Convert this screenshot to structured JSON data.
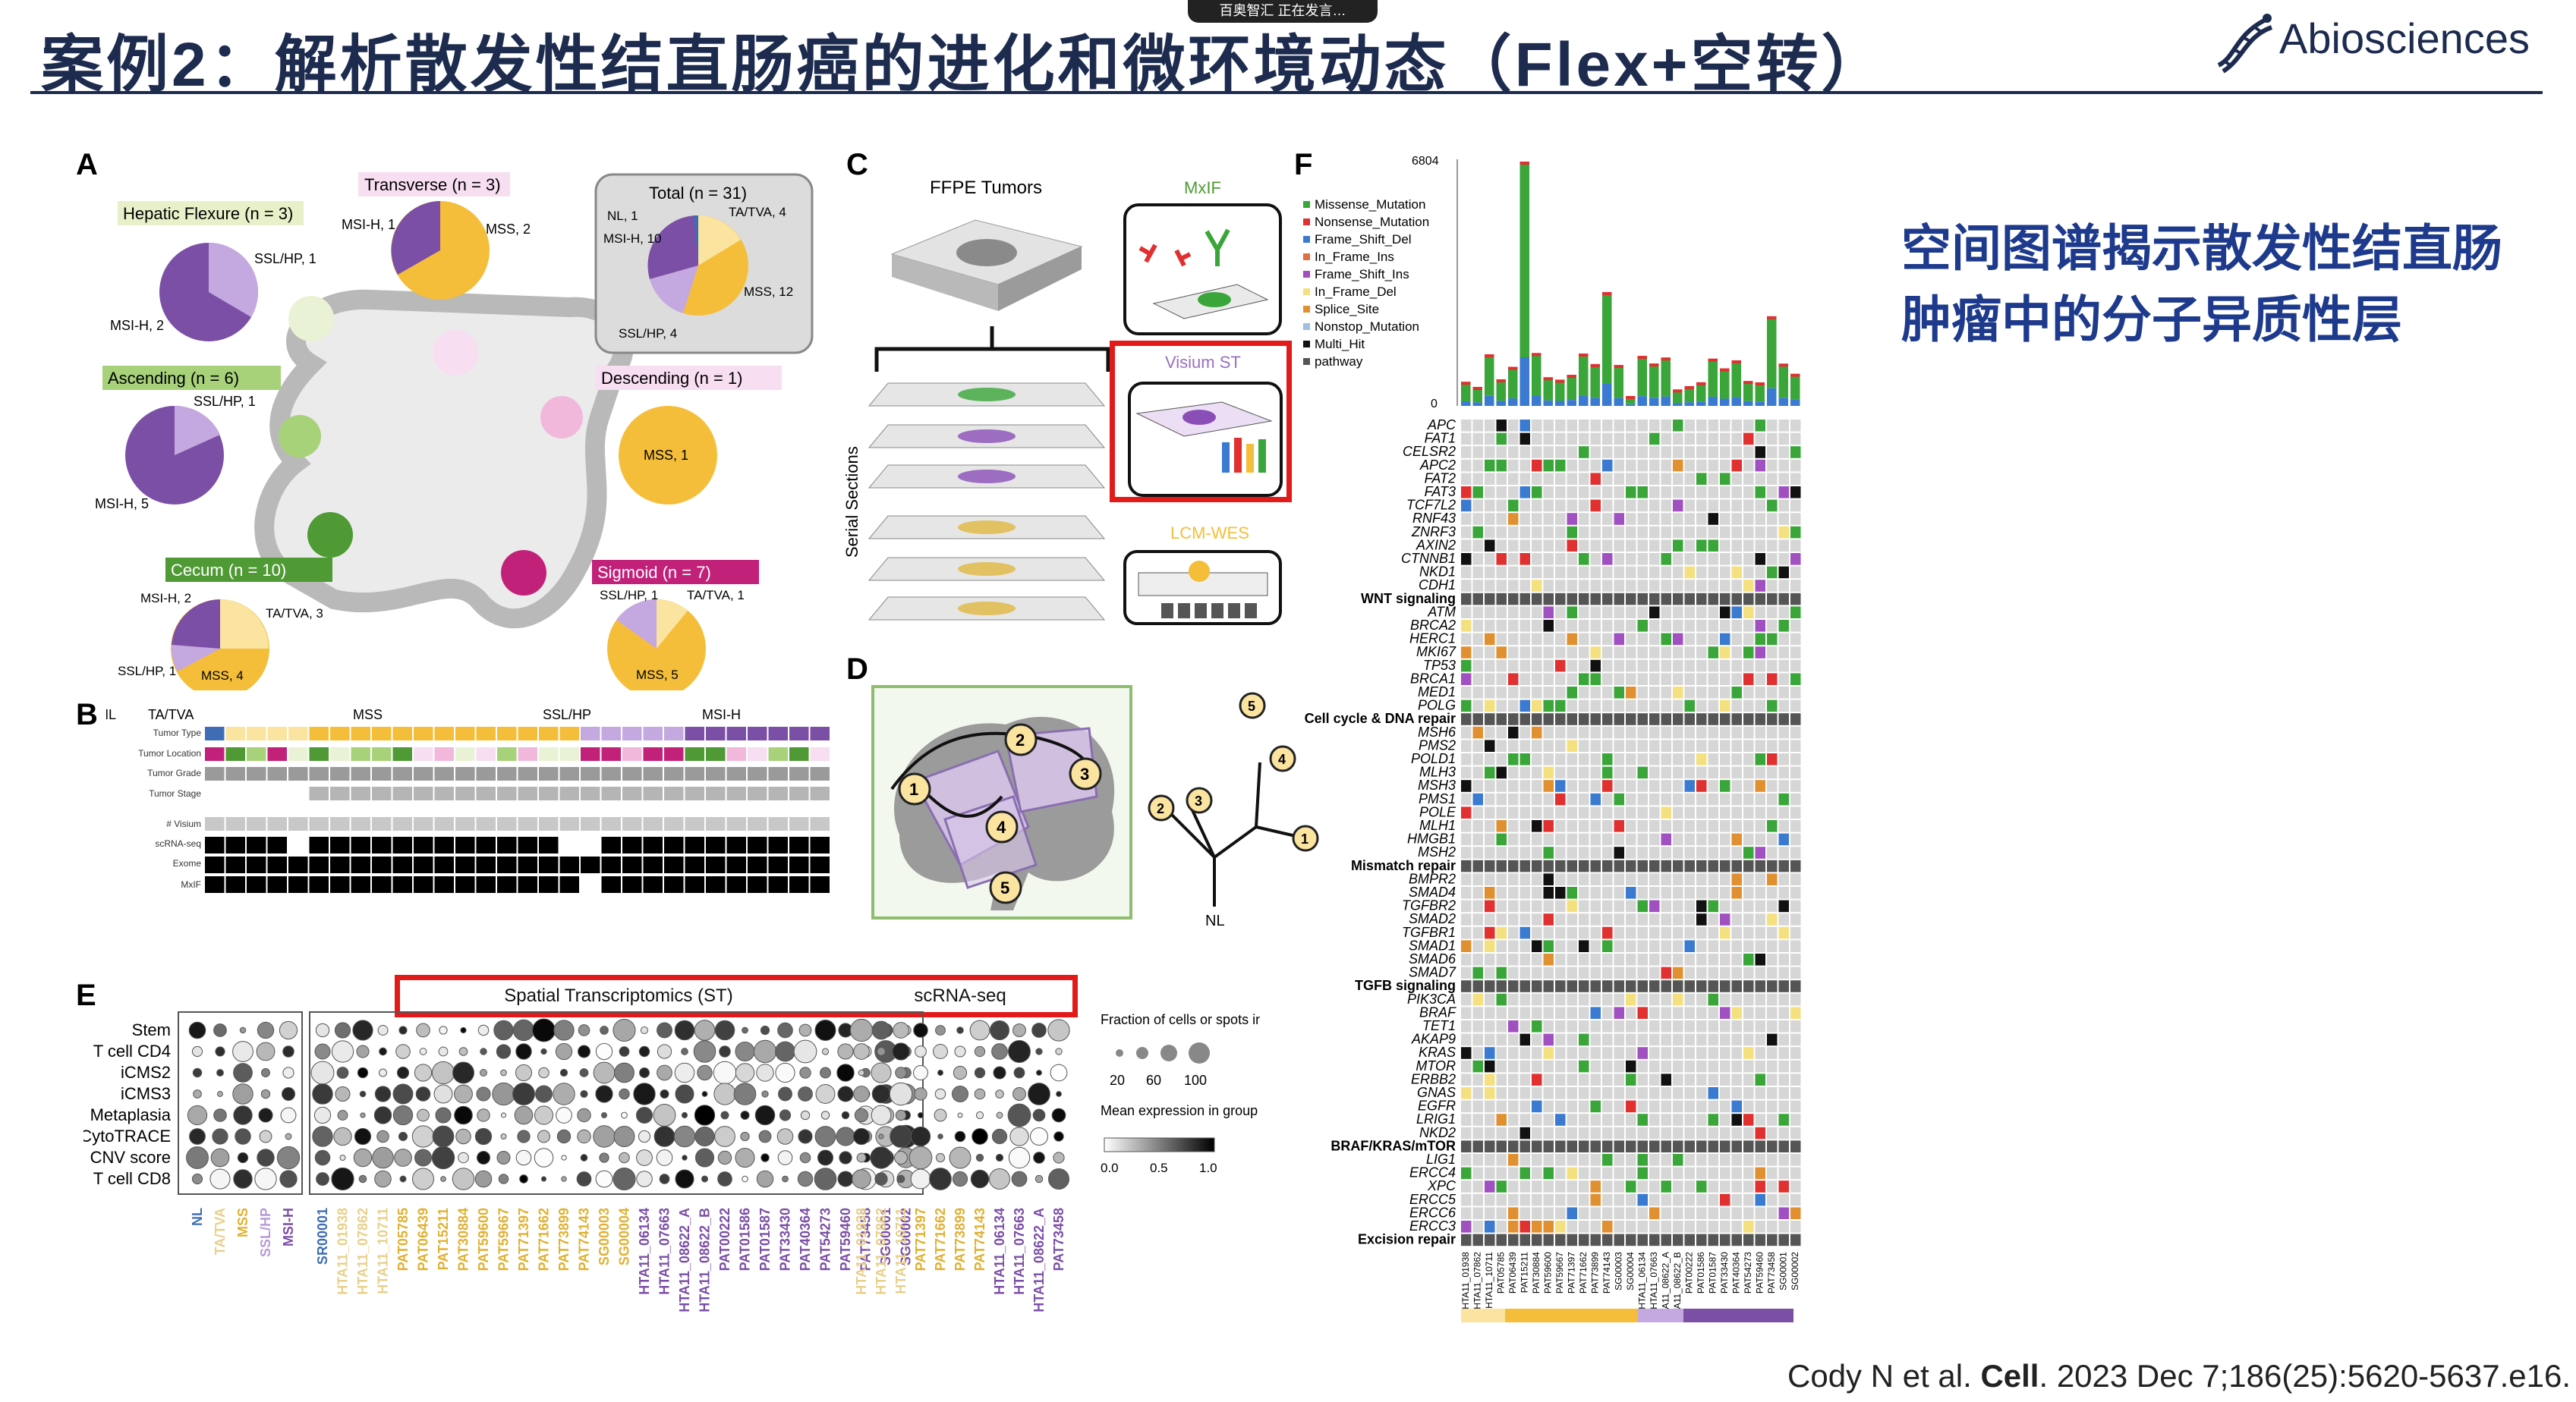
{
  "header": {
    "notice": "百奥智汇 正在发言…",
    "title": "案例2：解析散发性结直肠癌的进化和微环境动态（Flex+空转）",
    "logo": "Abiosciences"
  },
  "headline": [
    "空间图谱揭示散发性结直肠",
    "肿瘤中的分子异质性层"
  ],
  "citation": {
    "authors": "Cody N et al. ",
    "journal": "Cell",
    "rest": ". 2023 Dec 7;186(25):5620-5637.e16."
  },
  "panels": {
    "a": "A",
    "b": "B",
    "c": "C",
    "d": "D",
    "e": "E",
    "f": "F"
  },
  "panel_a": {
    "hepatic": "Hepatic Flexure (n = 3)",
    "transverse": "Transverse (n = 3)",
    "total": "Total (n = 31)",
    "ascending": "Ascending (n = 6)",
    "descending": "Descending (n = 1)",
    "cecum": "Cecum (n = 10)",
    "sigmoid": "Sigmoid (n = 7)",
    "pie_labels": {
      "hep_ssl": "SSL/HP, 1",
      "hep_msi": "MSI-H, 2",
      "tr_msi": "MSI-H, 1",
      "tr_mss": "MSS, 2",
      "tot_nl": "NL, 1",
      "tot_ta": "TA/TVA, 4",
      "tot_msi": "MSI-H, 10",
      "tot_mss": "MSS, 12",
      "tot_ssl": "SSL/HP, 4",
      "asc_ssl": "SSL/HP, 1",
      "asc_msi": "MSI-H, 5",
      "desc_mss": "MSS, 1",
      "cec_msi": "MSI-H, 2",
      "cec_ta": "TA/TVA, 3",
      "cec_ssl": "SSL/HP, 1",
      "cec_mss": "MSS, 4",
      "sig_ssl": "SSL/HP, 1",
      "sig_ta": "TA/TVA, 1",
      "sig_mss": "MSS, 5"
    },
    "colors": {
      "msi": "#7b4fa6",
      "ssl": "#c4a8e0",
      "mss": "#f5be3a",
      "ta": "#fbe3a0",
      "nl": "#3f6db5"
    }
  },
  "panel_b": {
    "groups": [
      "NL",
      "TA/TVA",
      "MSS",
      "SSL/HP",
      "MSI-H"
    ],
    "rows": [
      "Tumor Type",
      "Tumor Location",
      "Tumor Grade",
      "Tumor Stage",
      "# Visium",
      "scRNA-seq",
      "Exome",
      "MxIF"
    ]
  },
  "panel_c": {
    "ffpe": "FFPE Tumors",
    "serial": "Serial Sections",
    "mxif": "MxIF",
    "visium": "Visium ST",
    "lcm": "LCM-WES"
  },
  "panel_d": {
    "nodes": [
      "1",
      "2",
      "3",
      "4",
      "5"
    ],
    "root": "NL"
  },
  "panel_e": {
    "st_title": "Spatial Transcriptomics (ST)",
    "sc_title": "scRNA-seq",
    "rows": [
      "Stem",
      "T cell CD4",
      "iCMS2",
      "iCMS3",
      "Metaplasia",
      "CytoTRACE",
      "CNV score",
      "T cell CD8"
    ],
    "legend_title": "Fraction of cells or spots in group (%)",
    "legend_ticks": [
      "20",
      "60",
      "100"
    ],
    "expr_title": "Mean expression in group",
    "expr_ticks": [
      "0.0",
      "0.5",
      "1.0"
    ],
    "group_labels": [
      "NL",
      "TA/TVA",
      "MSS",
      "SSL/HP",
      "MSI-H"
    ],
    "st_samples": [
      "SR00001",
      "HTA11_01938",
      "HTA11_07862",
      "HTA11_10711",
      "PAT05785",
      "PAT06439",
      "PAT15211",
      "PAT30884",
      "PAT59600",
      "PAT59667",
      "PAT71397",
      "PAT71662",
      "PAT73899",
      "PAT74143",
      "SG00003",
      "SG00004",
      "HTA11_06134",
      "HTA11_07663",
      "HTA11_08622_A",
      "HTA11_08622_B",
      "PAT00222",
      "PAT01586",
      "PAT01587",
      "PAT33430",
      "PAT40364",
      "PAT54273",
      "PAT59460",
      "PAT73458",
      "SG00001",
      "SG00002"
    ],
    "sc_samples": [
      "HTA11_01938",
      "HTA11_07862",
      "HTA11_10711",
      "PAT71397",
      "PAT71662",
      "PAT73899",
      "PAT74143",
      "HTA11_06134",
      "HTA11_07663",
      "HTA11_08622_A",
      "PAT73458"
    ]
  },
  "panel_f": {
    "ymax": "6804",
    "ymin": "0",
    "legend": [
      "Missense_Mutation",
      "Nonsense_Mutation",
      "Frame_Shift_Del",
      "In_Frame_Ins",
      "Frame_Shift_Ins",
      "In_Frame_Del",
      "Splice_Site",
      "Nonstop_Mutation",
      "Multi_Hit",
      "pathway"
    ],
    "legend_colors": [
      "#3aa63a",
      "#e03030",
      "#3a7ad0",
      "#e07040",
      "#a050c0",
      "#f5e080",
      "#e09030",
      "#a0c0e0",
      "#111111",
      "#555555"
    ],
    "wnt": [
      "APC",
      "FAT1",
      "CELSR2",
      "APC2",
      "FAT2",
      "FAT3",
      "TCF7L2",
      "RNF43",
      "ZNRF3",
      "AXIN2",
      "CTNNB1",
      "NKD1",
      "CDH1"
    ],
    "wnt_label": "WNT signaling",
    "cc": [
      "ATM",
      "BRCA2",
      "HERC1",
      "MKI67",
      "TP53",
      "BRCA1",
      "MED1",
      "POLG"
    ],
    "cc_label": "Cell cycle & DNA repair",
    "mm": [
      "MSH6",
      "PMS2",
      "POLD1",
      "MLH3",
      "MSH3",
      "PMS1",
      "POLE",
      "MLH1",
      "HMGB1",
      "MSH2"
    ],
    "mm_label": "Mismatch repair",
    "tgfb": [
      "BMPR2",
      "SMAD4",
      "TGFBR2",
      "SMAD2",
      "TGFBR1",
      "SMAD1",
      "SMAD6",
      "SMAD7"
    ],
    "tgfb_label": "TGFB signaling",
    "braf": [
      "PIK3CA",
      "BRAF",
      "TET1",
      "AKAP9",
      "KRAS",
      "MTOR",
      "ERBB2",
      "GNAS",
      "EGFR",
      "LRIG1",
      "NKD2"
    ],
    "braf_label": "BRAF/KRAS/mTOR",
    "exc": [
      "LIG1",
      "ERCC4",
      "XPC",
      "ERCC5",
      "ERCC6",
      "ERCC3"
    ],
    "exc_label": "Excision repair",
    "samples": [
      "HTA11_01938",
      "HTA11_07862",
      "HTA11_10711",
      "PAT05785",
      "PAT06439",
      "PAT15211",
      "PAT30884",
      "PAT59600",
      "PAT59667",
      "PAT71397",
      "PAT71662",
      "PAT73899",
      "PAT74143",
      "SG00003",
      "SG00004",
      "HTA11_06134",
      "HTA11_07663",
      "HTA11_08622_A",
      "HTA11_08622_B",
      "PAT00222",
      "PAT01586",
      "PAT01587",
      "PAT33430",
      "PAT40364",
      "PAT54273",
      "PAT59460",
      "PAT73458",
      "SG00001",
      "SG00002"
    ]
  }
}
